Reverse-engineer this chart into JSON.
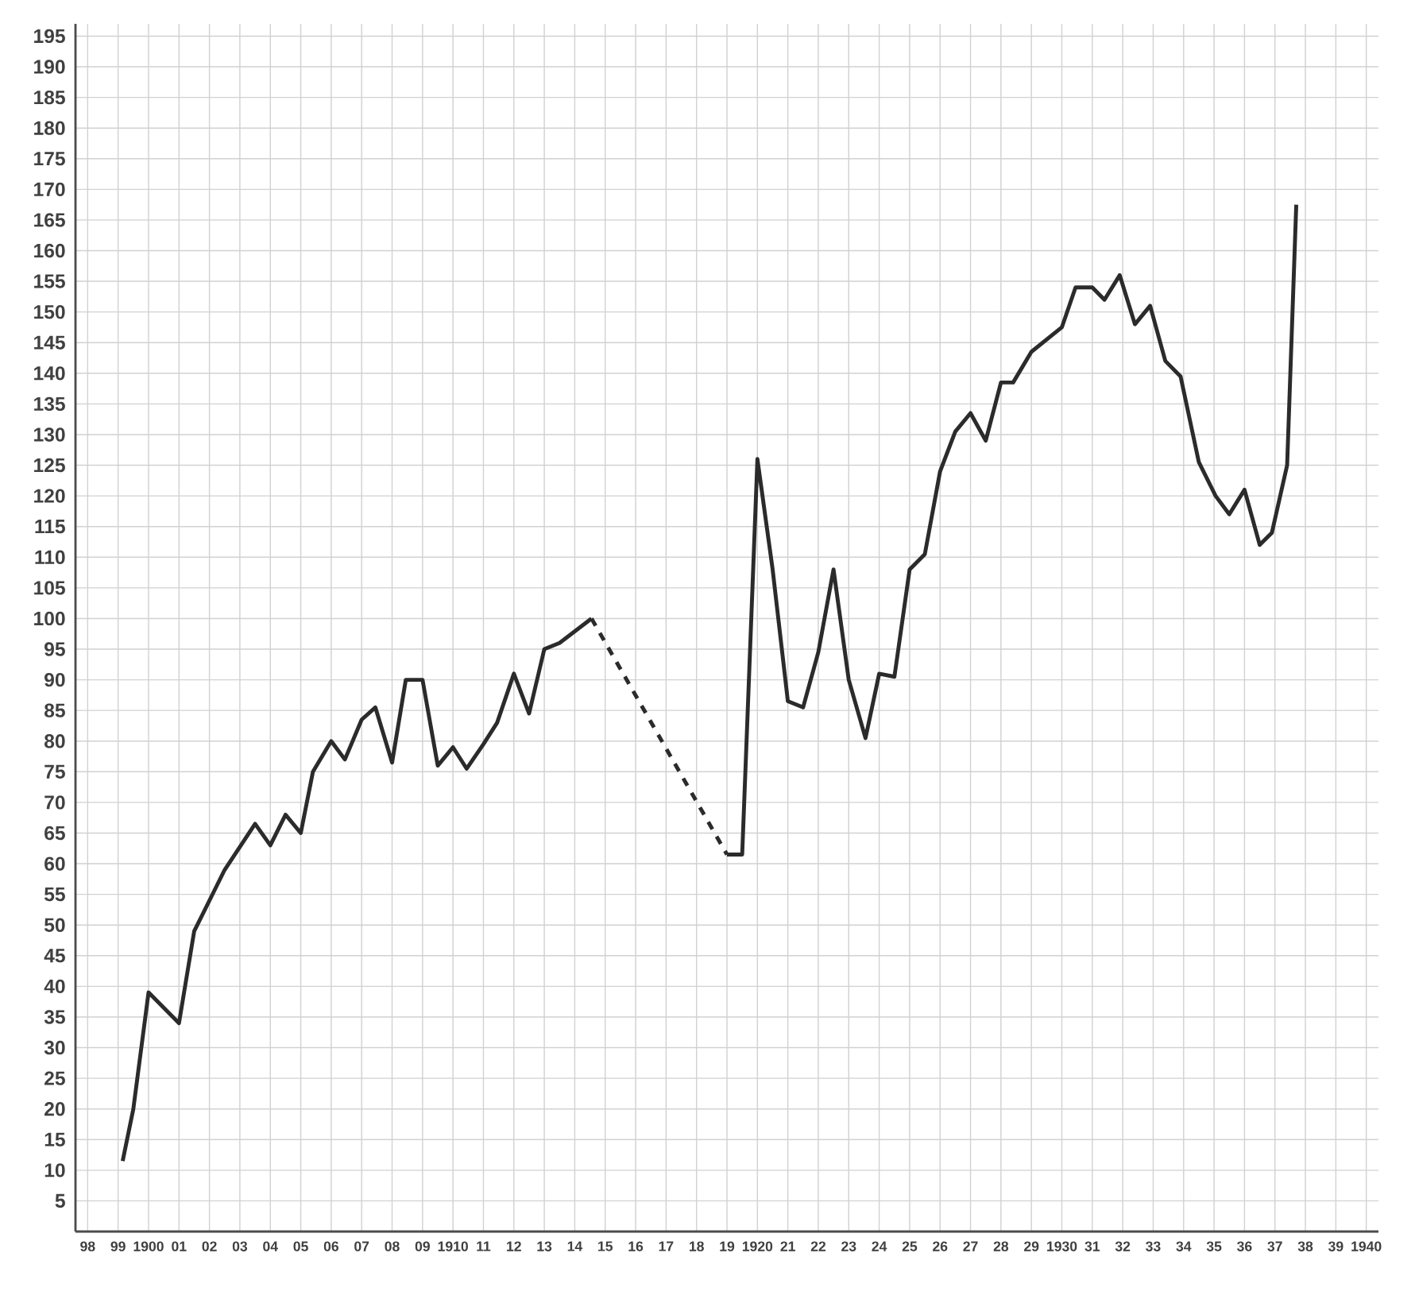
{
  "chart_data": {
    "type": "line",
    "xlim": [
      1897.6,
      1940.4
    ],
    "ylim": [
      0,
      197
    ],
    "xticks": [
      {
        "value": 1898,
        "label": "98"
      },
      {
        "value": 1899,
        "label": "99"
      },
      1900,
      {
        "value": 1901,
        "label": "01"
      },
      {
        "value": 1902,
        "label": "02"
      },
      {
        "value": 1903,
        "label": "03"
      },
      {
        "value": 1904,
        "label": "04"
      },
      {
        "value": 1905,
        "label": "05"
      },
      {
        "value": 1906,
        "label": "06"
      },
      {
        "value": 1907,
        "label": "07"
      },
      {
        "value": 1908,
        "label": "08"
      },
      {
        "value": 1909,
        "label": "09"
      },
      1910,
      {
        "value": 1911,
        "label": "11"
      },
      {
        "value": 1912,
        "label": "12"
      },
      {
        "value": 1913,
        "label": "13"
      },
      {
        "value": 1914,
        "label": "14"
      },
      {
        "value": 1915,
        "label": "15"
      },
      {
        "value": 1916,
        "label": "16"
      },
      {
        "value": 1917,
        "label": "17"
      },
      {
        "value": 1918,
        "label": "18"
      },
      {
        "value": 1919,
        "label": "19"
      },
      1920,
      {
        "value": 1921,
        "label": "21"
      },
      {
        "value": 1922,
        "label": "22"
      },
      {
        "value": 1923,
        "label": "23"
      },
      {
        "value": 1924,
        "label": "24"
      },
      {
        "value": 1925,
        "label": "25"
      },
      {
        "value": 1926,
        "label": "26"
      },
      {
        "value": 1927,
        "label": "27"
      },
      {
        "value": 1928,
        "label": "28"
      },
      {
        "value": 1929,
        "label": "29"
      },
      1930,
      {
        "value": 1931,
        "label": "31"
      },
      {
        "value": 1932,
        "label": "32"
      },
      {
        "value": 1933,
        "label": "33"
      },
      {
        "value": 1934,
        "label": "34"
      },
      {
        "value": 1935,
        "label": "35"
      },
      {
        "value": 1936,
        "label": "36"
      },
      {
        "value": 1937,
        "label": "37"
      },
      {
        "value": 1938,
        "label": "38"
      },
      {
        "value": 1939,
        "label": "39"
      },
      1940
    ],
    "yticks": [
      5,
      10,
      15,
      20,
      25,
      30,
      35,
      40,
      45,
      50,
      55,
      60,
      65,
      70,
      75,
      80,
      85,
      90,
      95,
      100,
      105,
      110,
      115,
      120,
      125,
      130,
      135,
      140,
      145,
      150,
      155,
      160,
      165,
      170,
      175,
      180,
      185,
      190,
      195
    ],
    "grid": true,
    "series": [
      {
        "color": "#2b2b2b",
        "line_style": "solid",
        "x": [
          1899.15,
          1899.5,
          1900.0,
          1901.0,
          1901.5,
          1902.5,
          1903.5,
          1904.0,
          1904.5,
          1905.0,
          1905.4,
          1906.0,
          1906.45,
          1907.0,
          1907.45,
          1908.0,
          1908.45,
          1909.0,
          1909.5,
          1910.0,
          1910.45,
          1911.0,
          1911.45,
          1912.0,
          1912.5,
          1913.0,
          1913.5,
          1914.55
        ],
        "values": [
          11.5,
          20,
          39,
          34,
          49,
          59,
          66.5,
          63,
          68,
          65,
          75,
          80,
          77,
          83.5,
          85.5,
          76.5,
          90,
          90,
          76,
          79,
          75.5,
          79.5,
          83,
          91,
          84.5,
          95,
          96,
          100
        ]
      },
      {
        "color": "#2b2b2b",
        "line_style": "dashed",
        "x": [
          1914.55,
          1919.0
        ],
        "values": [
          100,
          61.5
        ]
      },
      {
        "color": "#2b2b2b",
        "line_style": "solid",
        "x": [
          1919.0,
          1919.5,
          1920.0,
          1920.5,
          1921.0,
          1921.5,
          1922.0,
          1922.5,
          1923.0,
          1923.55,
          1924.0,
          1924.5,
          1925.0,
          1925.5,
          1926.0,
          1926.5,
          1927.0,
          1927.5,
          1928.0,
          1928.4,
          1929.0,
          1930.0,
          1930.45,
          1931.0,
          1931.4,
          1931.9,
          1932.4,
          1932.9,
          1933.4,
          1933.9,
          1934.5,
          1935.05,
          1935.5,
          1936.0,
          1936.5,
          1936.9,
          1937.4,
          1937.7
        ],
        "values": [
          61.5,
          61.5,
          126,
          108,
          86.5,
          85.5,
          94.5,
          108,
          90,
          80.5,
          91,
          90.5,
          108,
          110.5,
          124,
          130.5,
          133.5,
          129,
          138.5,
          138.5,
          143.5,
          147.5,
          154,
          154,
          152,
          156,
          148,
          151,
          142,
          139.5,
          125.5,
          120,
          117,
          121,
          112,
          114,
          125,
          167.5
        ]
      }
    ]
  }
}
